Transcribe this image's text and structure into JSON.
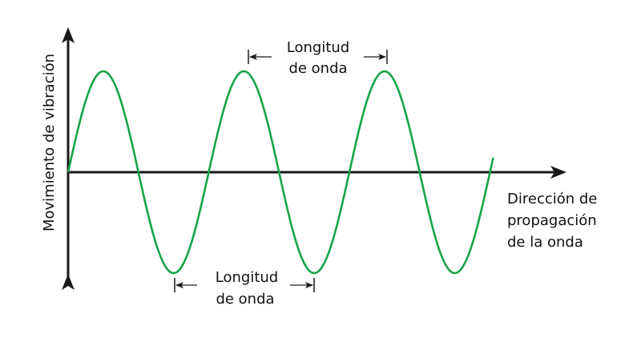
{
  "diagram": {
    "y_axis_label": "Movimiento de vibración",
    "x_axis_label_lines": [
      "Dirección de",
      "propagación",
      "de la onda"
    ],
    "wavelength_top_lines": [
      "Longitud",
      "de onda"
    ],
    "wavelength_bottom_lines": [
      "Longitud",
      "de onda"
    ],
    "wave_cycles": 3,
    "colors": {
      "wave": "#17a34a",
      "axes": "#1a1a1a",
      "text": "#111111",
      "background": "#ffffff"
    }
  }
}
